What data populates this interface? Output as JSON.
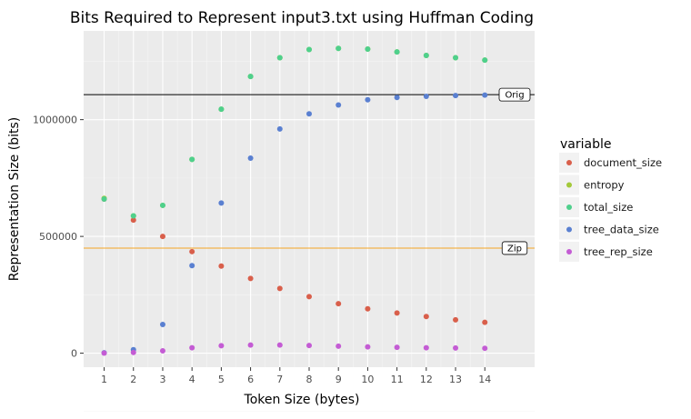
{
  "chart_data": {
    "type": "scatter",
    "title": "Bits Required to Represent input3.txt using Huffman Coding",
    "xlabel": "Token Size (bytes)",
    "ylabel": "Representation Size (bits)",
    "xlim": [
      0.3,
      15.7
    ],
    "ylim": [
      -60000,
      1380000
    ],
    "x_ticks": [
      1,
      2,
      3,
      4,
      5,
      6,
      7,
      8,
      9,
      10,
      11,
      12,
      13,
      14
    ],
    "y_ticks": [
      0,
      500000,
      1000000
    ],
    "y_tick_labels": [
      "0",
      "500000",
      "1000000"
    ],
    "grid": true,
    "legend": {
      "title": "variable",
      "position": "right"
    },
    "x": [
      1,
      2,
      3,
      4,
      5,
      6,
      7,
      8,
      9,
      10,
      11,
      12,
      13,
      14
    ],
    "series": [
      {
        "name": "document_size",
        "color": "#d95f4b",
        "values": [
          660000,
          570000,
          500000,
          435000,
          373000,
          320000,
          277000,
          242000,
          212000,
          190000,
          172000,
          157000,
          143000,
          132000
        ]
      },
      {
        "name": "entropy",
        "color": "#a3c93a",
        "values": [
          663000,
          588000,
          633000,
          830000,
          1045000,
          1185000,
          1265000,
          1300000,
          1305000,
          1302000,
          1290000,
          1275000,
          1265000,
          1255000
        ]
      },
      {
        "name": "total_size",
        "color": "#4fd08c",
        "values": [
          660000,
          588000,
          633000,
          830000,
          1045000,
          1185000,
          1265000,
          1300000,
          1305000,
          1302000,
          1290000,
          1275000,
          1265000,
          1255000
        ]
      },
      {
        "name": "tree_data_size",
        "color": "#5a80d1",
        "values": [
          2000,
          15000,
          123000,
          375000,
          643000,
          835000,
          960000,
          1025000,
          1063000,
          1085000,
          1095000,
          1100000,
          1103000,
          1105000
        ]
      },
      {
        "name": "tree_rep_size",
        "color": "#c45cd4",
        "values": [
          500,
          3000,
          10000,
          23000,
          32000,
          35000,
          35000,
          33000,
          30000,
          27000,
          25000,
          23000,
          22000,
          21000
        ]
      }
    ],
    "hlines": [
      {
        "label": "Orig",
        "value": 1107000,
        "color": "#000000"
      },
      {
        "label": "Zip",
        "value": 450000,
        "color": "#f5a623"
      }
    ]
  }
}
